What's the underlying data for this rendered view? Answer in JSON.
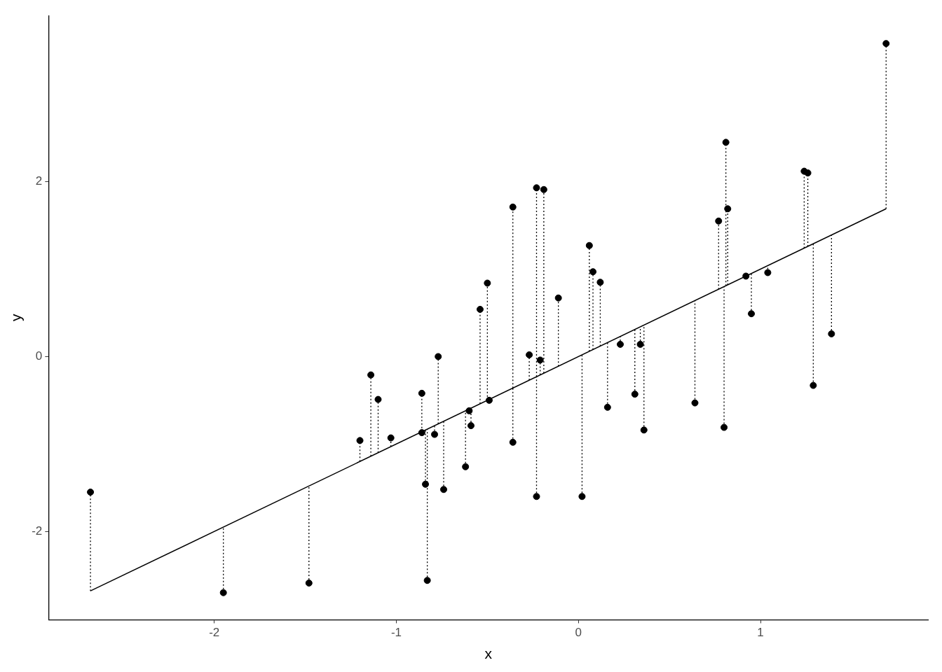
{
  "chart_data": {
    "type": "scatter",
    "xlabel": "x",
    "ylabel": "y",
    "xlim": [
      -2.91,
      1.92
    ],
    "ylim": [
      -3.01,
      3.9
    ],
    "xticks": [
      -2,
      -1,
      0,
      1
    ],
    "yticks": [
      -2,
      0,
      2
    ],
    "grid": false,
    "legend": false,
    "marker": "circle",
    "x": [
      -2.68,
      -1.95,
      -1.48,
      -1.2,
      -1.14,
      -1.1,
      -1.03,
      -0.86,
      -0.86,
      -0.84,
      -0.83,
      -0.79,
      -0.77,
      -0.74,
      -0.62,
      -0.6,
      -0.59,
      -0.54,
      -0.5,
      -0.49,
      -0.36,
      -0.36,
      -0.27,
      -0.23,
      -0.23,
      -0.21,
      -0.19,
      -0.11,
      0.02,
      0.06,
      0.08,
      0.12,
      0.16,
      0.23,
      0.31,
      0.34,
      0.36,
      0.64,
      0.77,
      0.8,
      0.81,
      0.82,
      0.92,
      0.95,
      1.04,
      1.24,
      1.26,
      1.29,
      1.39,
      1.69
    ],
    "series": [
      {
        "color": "#000000",
        "values": [
          -1.55,
          -2.7,
          -2.59,
          -0.96,
          -0.21,
          -0.49,
          -0.93,
          -0.42,
          -0.87,
          -1.46,
          -2.56,
          -0.89,
          0.0,
          -1.52,
          -1.26,
          -0.62,
          -0.79,
          0.54,
          0.84,
          -0.5,
          1.71,
          -0.98,
          0.02,
          1.93,
          -1.6,
          -0.04,
          1.91,
          0.67,
          -1.6,
          1.27,
          0.97,
          0.85,
          -0.58,
          0.14,
          -0.43,
          0.14,
          -0.84,
          -0.53,
          1.55,
          -0.81,
          2.45,
          1.69,
          0.92,
          0.49,
          0.96,
          2.12,
          2.1,
          -0.33,
          0.26,
          3.58
        ],
        "errors": [
          [
            -2.68,
            -1.55
          ],
          [
            -2.7,
            -1.95
          ],
          [
            -2.59,
            -1.48
          ],
          [
            -1.2,
            -0.96
          ],
          [
            -1.14,
            -0.21
          ],
          [
            -1.1,
            -0.49
          ],
          [
            -1.03,
            -0.93
          ],
          [
            -0.86,
            -0.42
          ],
          [
            -0.87,
            -0.86
          ],
          [
            -1.46,
            -0.84
          ],
          [
            -2.56,
            -0.83
          ],
          [
            -0.89,
            -0.79
          ],
          [
            -0.77,
            0.0
          ],
          [
            -1.52,
            -0.74
          ],
          [
            -1.26,
            -0.62
          ],
          [
            -0.62,
            -0.6
          ],
          [
            -0.79,
            -0.59
          ],
          [
            -0.54,
            0.54
          ],
          [
            -0.5,
            0.84
          ],
          [
            -0.5,
            -0.49
          ],
          [
            -0.36,
            1.71
          ],
          [
            -0.98,
            -0.36
          ],
          [
            -0.27,
            0.02
          ],
          [
            -0.23,
            1.93
          ],
          [
            -1.6,
            -0.23
          ],
          [
            -0.21,
            -0.04
          ],
          [
            -0.19,
            1.91
          ],
          [
            -0.11,
            0.67
          ],
          [
            -1.6,
            0.02
          ],
          [
            0.06,
            1.27
          ],
          [
            0.08,
            0.97
          ],
          [
            0.12,
            0.85
          ],
          [
            -0.58,
            0.16
          ],
          [
            0.14,
            0.23
          ],
          [
            -0.43,
            0.31
          ],
          [
            0.14,
            0.34
          ],
          [
            -0.84,
            0.36
          ],
          [
            -0.53,
            0.64
          ],
          [
            0.77,
            1.55
          ],
          [
            -0.81,
            0.8
          ],
          [
            0.81,
            2.45
          ],
          [
            0.82,
            1.69
          ],
          [
            0.92,
            0.92
          ],
          [
            0.49,
            0.95
          ],
          [
            0.96,
            1.04
          ],
          [
            1.24,
            2.12
          ],
          [
            1.26,
            2.1
          ],
          [
            -0.33,
            1.29
          ],
          [
            0.26,
            1.39
          ],
          [
            1.69,
            3.58
          ]
        ]
      },
      {
        "type": "line",
        "color": "#000000",
        "marker": "none",
        "line_style": "solid",
        "x": [
          -2.68,
          1.69
        ],
        "values": [
          -2.68,
          1.69
        ]
      }
    ]
  }
}
